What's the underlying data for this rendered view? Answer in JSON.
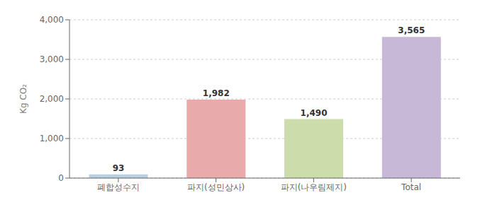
{
  "chart_data": {
    "type": "bar",
    "categories": [
      "폐합성수지",
      "파지(성민상사)",
      "파지(나우림제지)",
      "Total"
    ],
    "values": [
      93,
      1982,
      1490,
      3565
    ],
    "value_labels": [
      "93",
      "1,982",
      "1,490",
      "3,565"
    ],
    "colors": [
      "#b8d0e0",
      "#e8aaaa",
      "#ccdcaa",
      "#c8b8d8"
    ],
    "ylim": [
      0,
      4000
    ],
    "yticks": [
      0,
      {
        "value": 1000,
        "label": "1,000"
      },
      {
        "value": 2000,
        "label": "2,000"
      },
      {
        "value": 3000,
        "label": "3,000"
      },
      {
        "value": 4000,
        "label": "4,000"
      }
    ],
    "ylabel": "Kg CO₂",
    "grid": true,
    "data_labels": true
  }
}
